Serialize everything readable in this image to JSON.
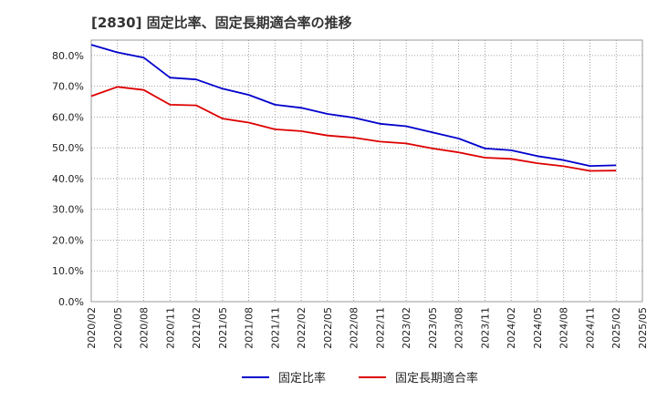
{
  "chart_data": {
    "type": "line",
    "title": "[2830]  固定比率、固定長期適合率の推移",
    "xlabel": "",
    "ylabel": "",
    "ylim": [
      0,
      85
    ],
    "y_ticks": [
      "0.0%",
      "10.0%",
      "20.0%",
      "30.0%",
      "40.0%",
      "50.0%",
      "60.0%",
      "70.0%",
      "80.0%"
    ],
    "y_tick_values": [
      0,
      10,
      20,
      30,
      40,
      50,
      60,
      70,
      80
    ],
    "categories": [
      "2020/02",
      "2020/05",
      "2020/08",
      "2020/11",
      "2021/02",
      "2021/05",
      "2021/08",
      "2021/11",
      "2022/02",
      "2022/05",
      "2022/08",
      "2022/11",
      "2023/02",
      "2023/05",
      "2023/08",
      "2023/11",
      "2024/02",
      "2024/05",
      "2024/08",
      "2024/11",
      "2025/02",
      "2025/05"
    ],
    "grid": true,
    "legend_position": "bottom",
    "series": [
      {
        "name": "固定比率",
        "color": "#0000cc",
        "values": [
          83.5,
          81.0,
          79.3,
          72.8,
          72.2,
          69.2,
          67.2,
          64.0,
          63.0,
          61.0,
          59.8,
          57.8,
          57.0,
          55.0,
          53.0,
          49.8,
          49.2,
          47.3,
          46.0,
          44.1,
          44.3,
          null
        ]
      },
      {
        "name": "固定長期適合率",
        "color": "#dd0000",
        "values": [
          66.8,
          69.8,
          68.8,
          64.0,
          63.8,
          59.5,
          58.2,
          56.0,
          55.4,
          54.0,
          53.3,
          52.0,
          51.4,
          49.8,
          48.5,
          46.8,
          46.4,
          45.0,
          44.0,
          42.5,
          42.6,
          null
        ]
      }
    ]
  }
}
